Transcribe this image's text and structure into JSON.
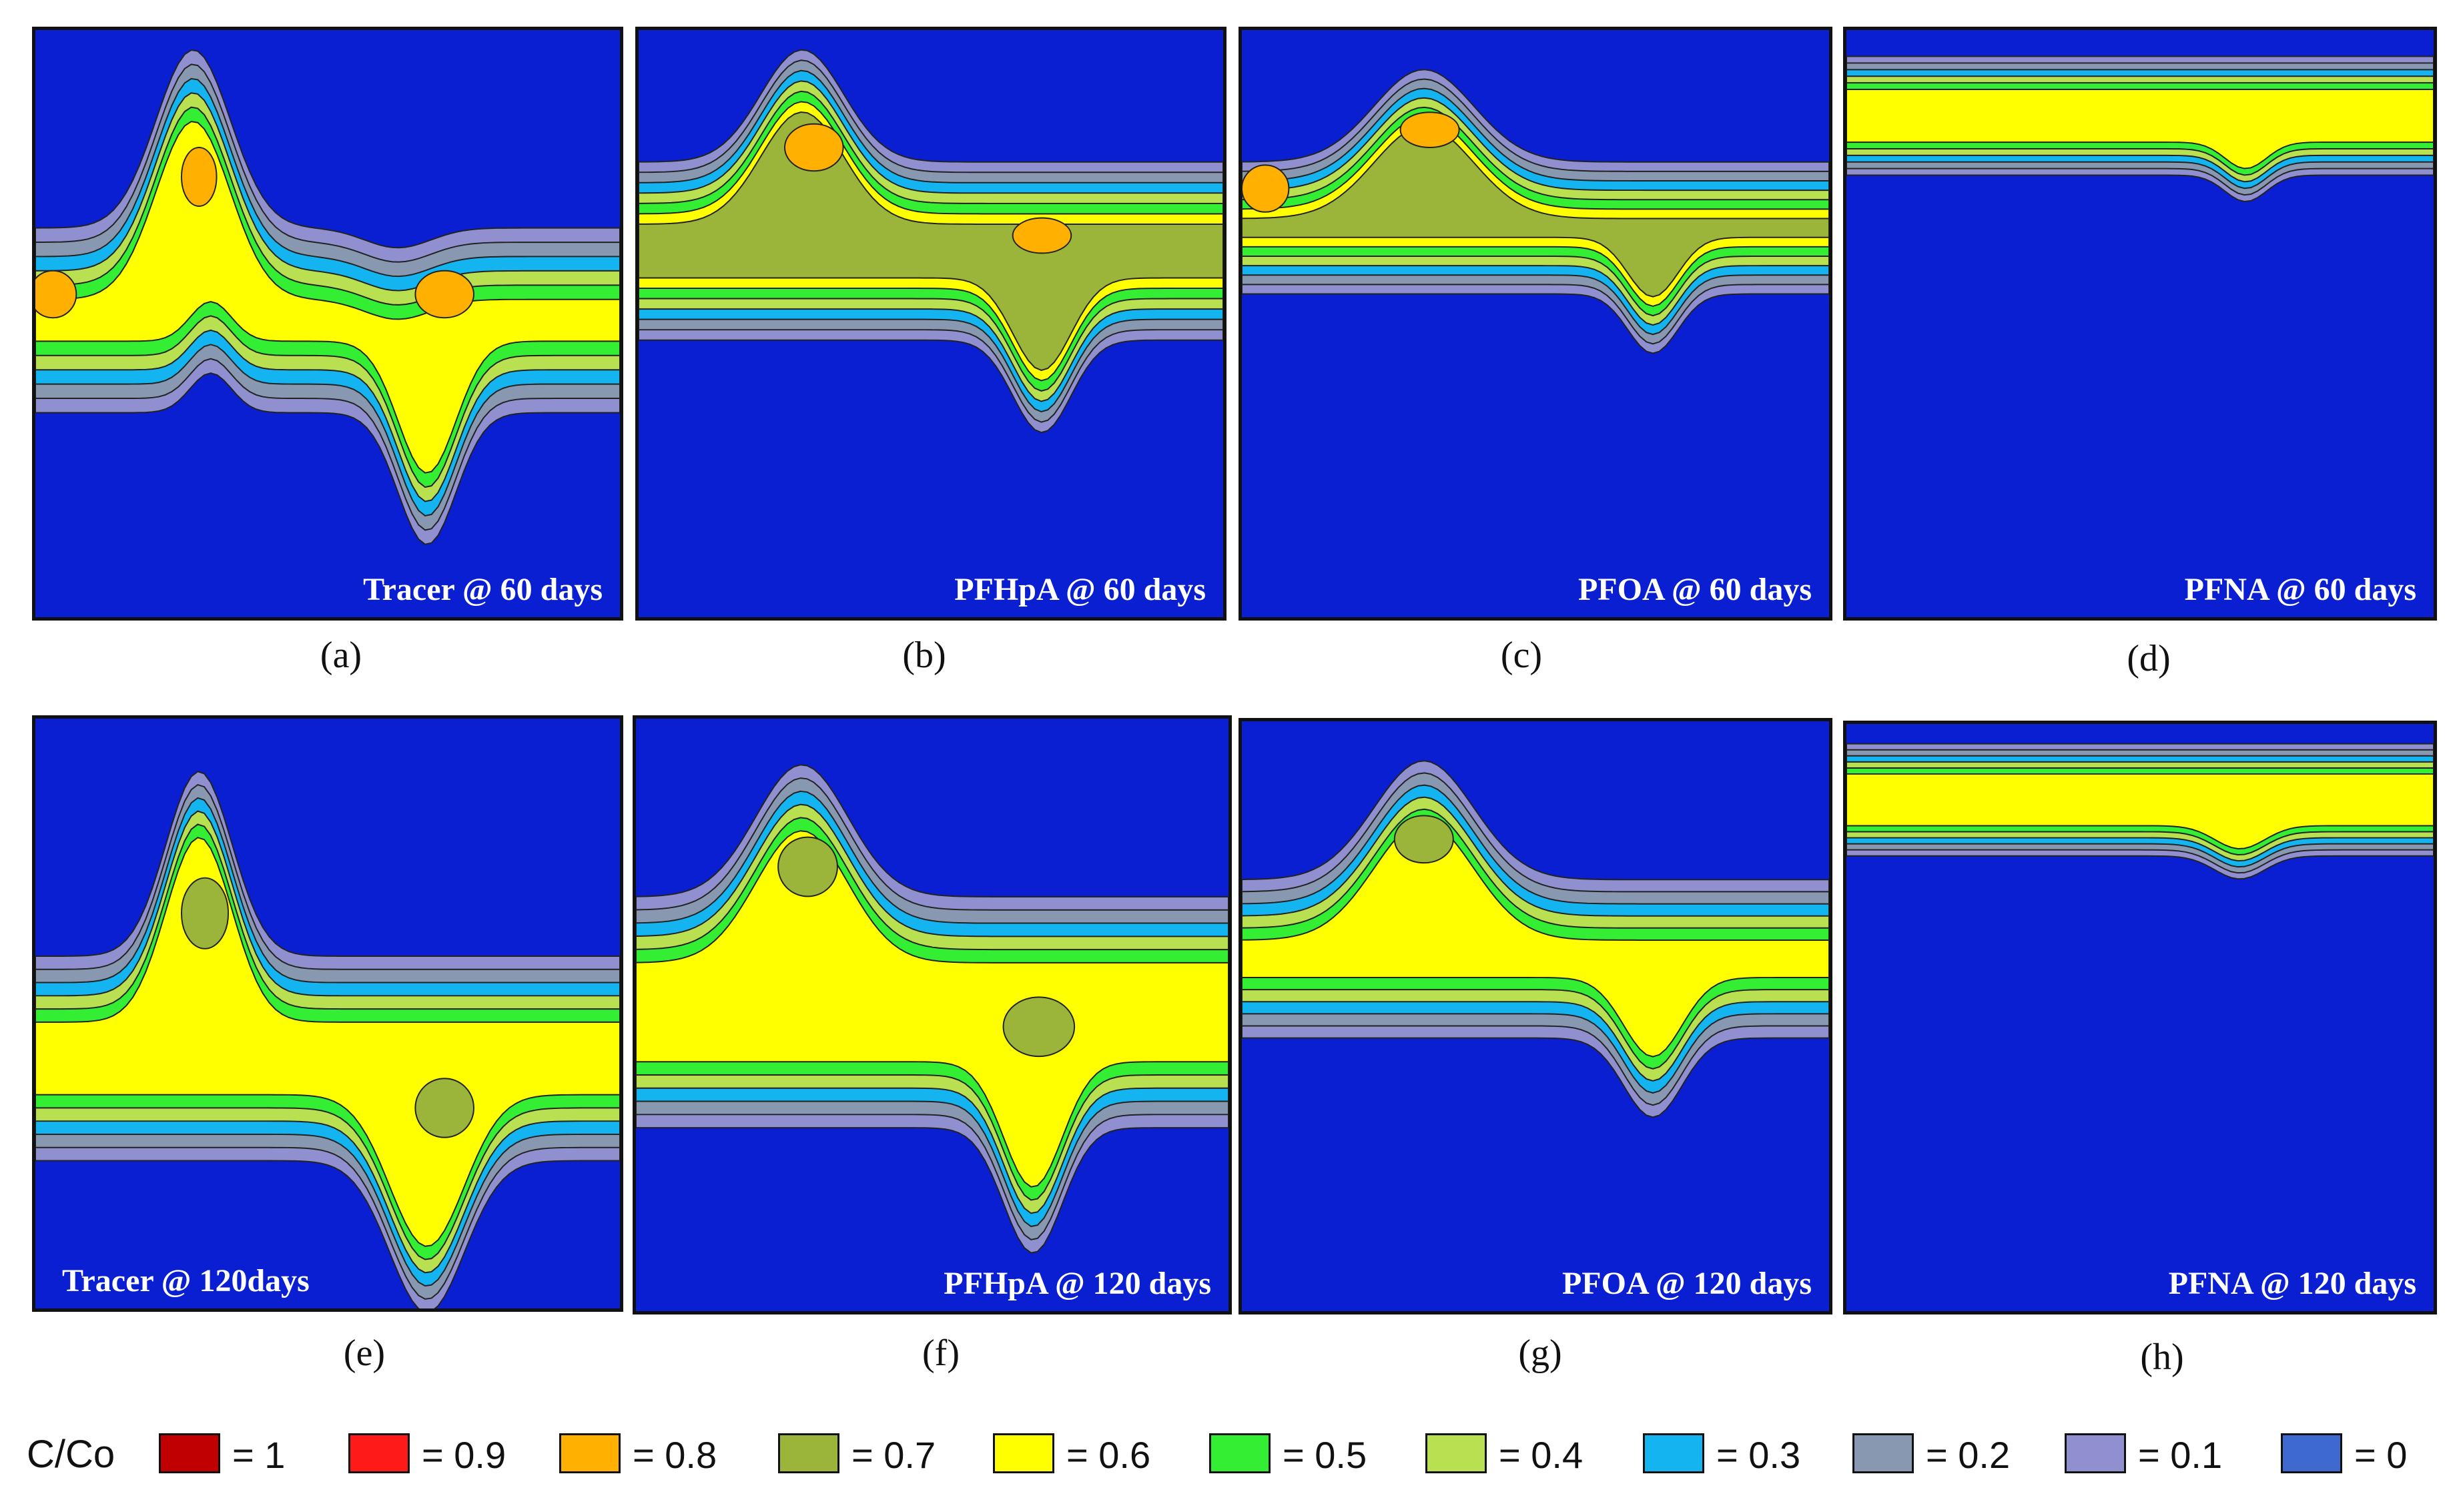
{
  "panels": [
    {
      "title": "Tracer @ 60 days",
      "sub": "(a)"
    },
    {
      "title": "PFHpA @ 60 days",
      "sub": "(b)"
    },
    {
      "title": "PFOA @ 60 days",
      "sub": "(c)"
    },
    {
      "title": "PFNA @ 60 days",
      "sub": "(d)"
    },
    {
      "title": "Tracer @ 120days",
      "sub": "(e)"
    },
    {
      "title": "PFHpA @ 120 days",
      "sub": "(f)"
    },
    {
      "title": "PFOA @ 120 days",
      "sub": "(g)"
    },
    {
      "title": "PFNA @ 120 days",
      "sub": "(h)"
    }
  ],
  "legend": {
    "title": "C/Co",
    "items": [
      {
        "label": "= 1",
        "color": "#c00000"
      },
      {
        "label": "= 0.9",
        "color": "#ff1a1a"
      },
      {
        "label": "= 0.8",
        "color": "#ffb000"
      },
      {
        "label": "= 0.7",
        "color": "#9bb53a"
      },
      {
        "label": "= 0.6",
        "color": "#ffff00"
      },
      {
        "label": "= 0.5",
        "color": "#33ee33"
      },
      {
        "label": "= 0.4",
        "color": "#b8e050"
      },
      {
        "label": "= 0.3",
        "color": "#14b4f0"
      },
      {
        "label": "= 0.2",
        "color": "#8898b0"
      },
      {
        "label": "= 0.1",
        "color": "#9090d0"
      },
      {
        "label": "= 0",
        "color": "#3e6ad0"
      }
    ]
  },
  "plot": {
    "background": "#0a1ed2",
    "outline": "#111111"
  }
}
